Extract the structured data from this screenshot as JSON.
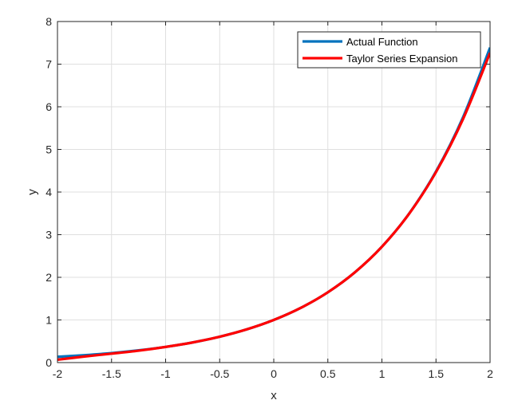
{
  "chart_data": {
    "type": "line",
    "title": "",
    "xlabel": "x",
    "ylabel": "y",
    "xlim": [
      -2,
      2
    ],
    "ylim": [
      0,
      8
    ],
    "xticks": [
      -2,
      -1.5,
      -1,
      -0.5,
      0,
      0.5,
      1,
      1.5,
      2
    ],
    "xtick_labels": [
      "-2",
      "-1.5",
      "-1",
      "-0.5",
      "0",
      "0.5",
      "1",
      "1.5",
      "2"
    ],
    "yticks": [
      0,
      1,
      2,
      3,
      4,
      5,
      6,
      7,
      8
    ],
    "ytick_labels": [
      "0",
      "1",
      "2",
      "3",
      "4",
      "5",
      "6",
      "7",
      "8"
    ],
    "grid": true,
    "legend_position": "top-right",
    "series": [
      {
        "name": "Actual Function",
        "color": "#0072BD",
        "x": [
          -2,
          -1.75,
          -1.5,
          -1.25,
          -1,
          -0.75,
          -0.5,
          -0.25,
          0,
          0.25,
          0.5,
          0.75,
          1,
          1.25,
          1.5,
          1.75,
          2
        ],
        "y": [
          0.135,
          0.174,
          0.223,
          0.287,
          0.368,
          0.472,
          0.607,
          0.779,
          1.0,
          1.284,
          1.649,
          2.117,
          2.718,
          3.49,
          4.482,
          5.755,
          7.389
        ]
      },
      {
        "name": "Taylor Series Expansion",
        "color": "#FF0000",
        "x": [
          -2,
          -1.75,
          -1.5,
          -1.25,
          -1,
          -0.75,
          -0.5,
          -0.25,
          0,
          0.25,
          0.5,
          0.75,
          1,
          1.25,
          1.5,
          1.75,
          2
        ],
        "y": [
          0.067,
          0.142,
          0.209,
          0.279,
          0.367,
          0.472,
          0.607,
          0.779,
          1.0,
          1.284,
          1.649,
          2.117,
          2.717,
          3.486,
          4.467,
          5.711,
          7.267
        ]
      }
    ]
  }
}
